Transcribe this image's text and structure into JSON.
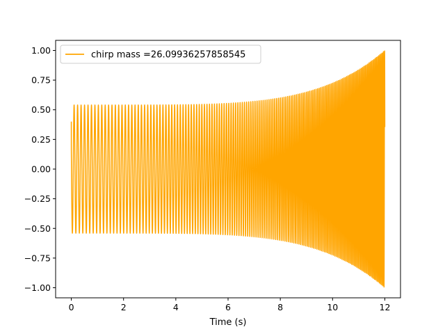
{
  "chart_data": {
    "type": "line",
    "title": "",
    "xlabel": "Time (s)",
    "ylabel": "",
    "xlim": [
      -0.6,
      12.6
    ],
    "ylim": [
      -1.085,
      1.085
    ],
    "x_ticks": [
      0,
      2,
      4,
      6,
      8,
      10,
      12
    ],
    "y_ticks": [
      -1.0,
      -0.75,
      -0.5,
      -0.25,
      0.0,
      0.25,
      0.5,
      0.75,
      1.0
    ],
    "x_tick_labels": [
      "0",
      "2",
      "4",
      "6",
      "8",
      "10",
      "12"
    ],
    "y_tick_labels": [
      "−1.00",
      "−0.75",
      "−0.50",
      "−0.25",
      "0.00",
      "0.25",
      "0.50",
      "0.75",
      "1.00"
    ],
    "grid": false,
    "legend_position": "top-left",
    "series": [
      {
        "name": "chirp mass =26.09936257858545",
        "color": "#ffa500",
        "x_start": 0,
        "x_end": 12,
        "initial_value": 0.4,
        "envelope_start": 0.54,
        "envelope_end": 1.0,
        "cycles": 150
      }
    ]
  }
}
